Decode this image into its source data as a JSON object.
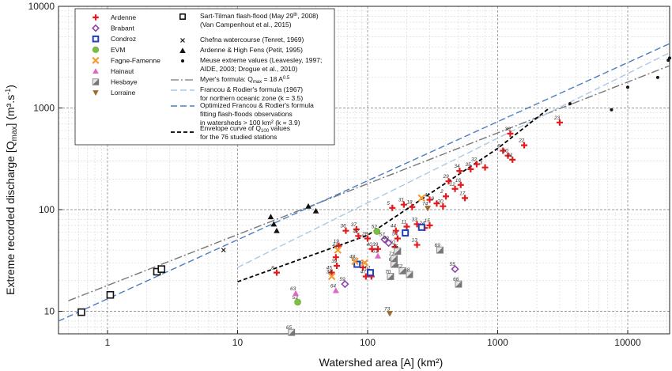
{
  "chart_data": {
    "type": "scatter",
    "xlabel": "Watershed area [A] (km²)",
    "ylabel": "Extreme recorded discharge [Q",
    "ylabel_sub": "max",
    "ylabel_unit": "] (m³.s",
    "ylabel_exp": "-1",
    "ylabel_end": ")",
    "x_scale": "log",
    "y_scale": "log",
    "xlim": [
      0.42,
      21000
    ],
    "ylim": [
      6,
      10000
    ],
    "grid": true,
    "legend_position": "top-left",
    "x_ticks": [
      1,
      10,
      100,
      1000,
      10000
    ],
    "x_tick_labels": [
      "1",
      "10",
      "100",
      "1000",
      "10000"
    ],
    "y_ticks": [
      10,
      100,
      1000,
      10000
    ],
    "y_tick_labels": [
      "10",
      "100",
      "1000",
      "10000"
    ],
    "legend_left": [
      {
        "name": "Ardenne",
        "marker": "plus",
        "color": "#e41a1c"
      },
      {
        "name": "Brabant",
        "marker": "diamond",
        "color": "#8e44ad"
      },
      {
        "name": "Condroz",
        "marker": "square",
        "color": "#1f3fbf"
      },
      {
        "name": "EVM",
        "marker": "circle",
        "color": "#7ac143"
      },
      {
        "name": "Fagne-Famenne",
        "marker": "x",
        "color": "#f39c34"
      },
      {
        "name": "Hainaut",
        "marker": "triangle-up",
        "color": "#e066c6"
      },
      {
        "name": "Hesbaye",
        "marker": "halfsquare",
        "color": "#888888"
      },
      {
        "name": "Lorraine",
        "marker": "triangle-down",
        "color": "#9c6b30"
      }
    ],
    "legend_right": [
      {
        "lines": [
          "Sart-Tilman flash-flood (May 29",
          "th",
          ", 2008)",
          "(Van Campenhout et al., 2015)"
        ],
        "marker": "square-black"
      },
      {
        "lines": [
          "Chefna watercourse (Tenret, 1969)"
        ],
        "marker": "x-black"
      },
      {
        "lines": [
          "Ardenne & High Fens (Petit, 1995)"
        ],
        "marker": "triangle-black"
      },
      {
        "lines": [
          "Meuse extreme values (Leavesley, 1997;",
          "AIDE, 2003; Drogue et al., 2010)"
        ],
        "marker": "dot-black"
      },
      {
        "lines": [
          "Myer's formula: Q",
          "max",
          " = 18 A",
          "0.5"
        ],
        "marker": "line-dashdot"
      },
      {
        "lines": [
          "Francou & Rodier's formula (1967)",
          "for northern oceanic zone (k = 3.5)"
        ],
        "marker": "line-lightblue"
      },
      {
        "lines": [
          "Optimized Francou & Rodier's formula",
          "fitting flash-floods observations",
          "in watersheds > 100 km² (k = 3.9)"
        ],
        "marker": "line-blue"
      },
      {
        "lines": [
          "Envelope curve of Q",
          "100",
          " values",
          "for the 76 studied stations"
        ],
        "marker": "line-black"
      }
    ],
    "series": [
      {
        "name": "Sart-Tilman flash-flood",
        "marker": "square-black",
        "points": [
          [
            0.63,
            9.8
          ],
          [
            1.05,
            14.5
          ],
          [
            2.4,
            24.5
          ],
          [
            2.6,
            26
          ]
        ]
      },
      {
        "name": "Chefna watercourse",
        "marker": "x-black",
        "points": [
          [
            7.8,
            40
          ]
        ]
      },
      {
        "name": "Ardenne & High Fens",
        "marker": "triangle-black",
        "points": [
          [
            18,
            85
          ],
          [
            19,
            72
          ],
          [
            20,
            62
          ],
          [
            35,
            108
          ],
          [
            40,
            97
          ]
        ]
      },
      {
        "name": "Meuse extreme values",
        "marker": "dot-black",
        "points": [
          [
            3600,
            1100
          ],
          [
            7500,
            960
          ],
          [
            10000,
            1600
          ],
          [
            17000,
            2000
          ],
          [
            20500,
            2950
          ],
          [
            21000,
            3100
          ]
        ]
      },
      {
        "name": "Ardenne",
        "marker": "plus",
        "points": [
          {
            "x": 20,
            "y": 24,
            "label": "8"
          },
          {
            "x": 53,
            "y": 24,
            "label": "45"
          },
          {
            "x": 58,
            "y": 28,
            "label": "39"
          },
          {
            "x": 57,
            "y": 34,
            "label": ""
          },
          {
            "x": 60,
            "y": 44,
            "label": "19"
          },
          {
            "x": 68,
            "y": 62,
            "label": "36"
          },
          {
            "x": 82,
            "y": 64,
            "label": "37"
          },
          {
            "x": 85,
            "y": 55,
            "label": "42"
          },
          {
            "x": 92,
            "y": 27,
            "label": "75"
          },
          {
            "x": 97,
            "y": 22,
            "label": "47"
          },
          {
            "x": 100,
            "y": 52,
            "label": "28"
          },
          {
            "x": 108,
            "y": 41,
            "label": "40"
          },
          {
            "x": 120,
            "y": 41,
            "label": "39"
          },
          {
            "x": 107,
            "y": 22,
            "label": ""
          },
          {
            "x": 170,
            "y": 52,
            "label": "54"
          },
          {
            "x": 162,
            "y": 43,
            "label": "50"
          },
          {
            "x": 165,
            "y": 62,
            "label": "44"
          },
          {
            "x": 200,
            "y": 68,
            "label": "11"
          },
          {
            "x": 240,
            "y": 45,
            "label": "13"
          },
          {
            "x": 275,
            "y": 66,
            "label": "24"
          },
          {
            "x": 240,
            "y": 72,
            "label": "33"
          },
          {
            "x": 300,
            "y": 70,
            "label": "15"
          },
          {
            "x": 155,
            "y": 104,
            "label": "5"
          },
          {
            "x": 190,
            "y": 112,
            "label": "31"
          },
          {
            "x": 220,
            "y": 106,
            "label": "18"
          },
          {
            "x": 300,
            "y": 125,
            "label": "41"
          },
          {
            "x": 340,
            "y": 115,
            "label": "9"
          },
          {
            "x": 380,
            "y": 108,
            "label": "20"
          },
          {
            "x": 400,
            "y": 135,
            "label": "2"
          },
          {
            "x": 470,
            "y": 160,
            "label": "12"
          },
          {
            "x": 520,
            "y": 175,
            "label": "16"
          },
          {
            "x": 560,
            "y": 130,
            "label": "17"
          },
          {
            "x": 420,
            "y": 190,
            "label": "29"
          },
          {
            "x": 510,
            "y": 240,
            "label": "34"
          },
          {
            "x": 620,
            "y": 250,
            "label": "35"
          },
          {
            "x": 690,
            "y": 280,
            "label": "32"
          },
          {
            "x": 800,
            "y": 260,
            "label": "3"
          },
          {
            "x": 1100,
            "y": 380,
            "label": "6"
          },
          {
            "x": 1200,
            "y": 340,
            "label": "10"
          },
          {
            "x": 1300,
            "y": 310,
            "label": "21"
          },
          {
            "x": 1250,
            "y": 560,
            "label": "30"
          },
          {
            "x": 1600,
            "y": 430,
            "label": "22"
          },
          {
            "x": 3000,
            "y": 720,
            "label": "23"
          }
        ]
      },
      {
        "name": "Brabant",
        "marker": "diamond",
        "points": [
          {
            "x": 67,
            "y": 18.5,
            "label": "59"
          },
          {
            "x": 135,
            "y": 51,
            "label": "57"
          },
          {
            "x": 145,
            "y": 47,
            "label": "49"
          },
          {
            "x": 470,
            "y": 26,
            "label": "55"
          }
        ]
      },
      {
        "name": "Condroz",
        "marker": "square",
        "points": [
          {
            "x": 83,
            "y": 29,
            "label": "60"
          },
          {
            "x": 105,
            "y": 24,
            "label": "51"
          },
          {
            "x": 195,
            "y": 59,
            "label": ""
          },
          {
            "x": 260,
            "y": 67,
            "label": ""
          }
        ]
      },
      {
        "name": "EVM",
        "marker": "circle",
        "points": [
          {
            "x": 29,
            "y": 12.3,
            "label": "53"
          },
          {
            "x": 118,
            "y": 61,
            "label": "52"
          }
        ]
      },
      {
        "name": "Fagne-Famenne",
        "marker": "x",
        "points": [
          {
            "x": 53,
            "y": 22,
            "label": "38"
          },
          {
            "x": 59,
            "y": 40,
            "label": "43"
          },
          {
            "x": 80,
            "y": 31,
            "label": "48"
          },
          {
            "x": 95,
            "y": 30,
            "label": ""
          },
          {
            "x": 260,
            "y": 130,
            "label": ""
          }
        ]
      },
      {
        "name": "Hainaut",
        "marker": "triangle-up",
        "points": [
          {
            "x": 28,
            "y": 15,
            "label": "63"
          },
          {
            "x": 57,
            "y": 16,
            "label": "64"
          },
          {
            "x": 120,
            "y": 35,
            "label": "61"
          }
        ]
      },
      {
        "name": "Hesbaye",
        "marker": "halfsquare",
        "points": [
          {
            "x": 26,
            "y": 6.2,
            "label": "65"
          },
          {
            "x": 150,
            "y": 22,
            "label": "70"
          },
          {
            "x": 160,
            "y": 29,
            "label": "67"
          },
          {
            "x": 210,
            "y": 23,
            "label": "68"
          },
          {
            "x": 160,
            "y": 33,
            "label": "71"
          },
          {
            "x": 170,
            "y": 39,
            "label": "76"
          },
          {
            "x": 360,
            "y": 40,
            "label": "69"
          },
          {
            "x": 500,
            "y": 18.5,
            "label": "66"
          },
          {
            "x": 185,
            "y": 25,
            "label": "62"
          }
        ]
      },
      {
        "name": "Lorraine",
        "marker": "triangle-down",
        "points": [
          {
            "x": 148,
            "y": 9.5,
            "label": "73"
          },
          {
            "x": 290,
            "y": 103,
            "label": "74"
          }
        ]
      }
    ],
    "curves": [
      {
        "name": "Myer's formula",
        "style": "dashdot",
        "color": "#777777",
        "points": [
          [
            0.5,
            12.7
          ],
          [
            21000,
            2608
          ]
        ]
      },
      {
        "name": "Francou & Rodier's formula (1967)",
        "style": "dashed",
        "color": "#a8c9ea",
        "points": [
          [
            10,
            27
          ],
          [
            21000,
            3500
          ]
        ]
      },
      {
        "name": "Optimized Francou & Rodier's formula",
        "style": "dashed",
        "color": "#4a7fc1",
        "points": [
          [
            0.42,
            8
          ],
          [
            21000,
            4300
          ]
        ]
      },
      {
        "name": "Envelope curve of Q100 values",
        "style": "dashed",
        "color": "#000000",
        "points": [
          [
            10,
            19.5
          ],
          [
            100,
            56
          ],
          [
            1000,
            400
          ],
          [
            2500,
            1000
          ]
        ]
      }
    ]
  }
}
